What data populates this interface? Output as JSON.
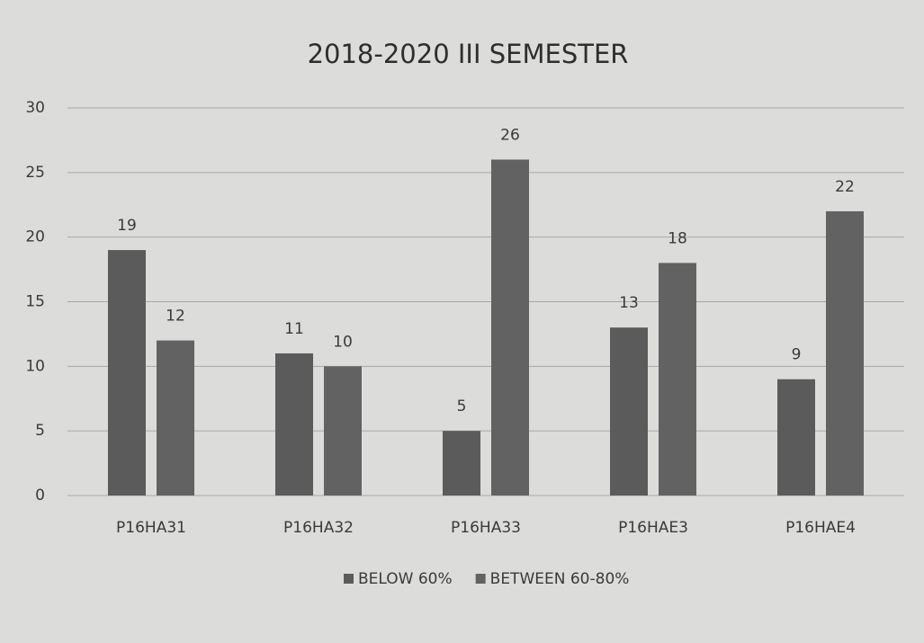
{
  "chart_data": {
    "type": "bar",
    "title": "2018-2020 III SEMESTER",
    "categories": [
      "P16HA31",
      "P16HA32",
      "P16HA33",
      "P16HAE3",
      "P16HAE4"
    ],
    "series": [
      {
        "name": "BELOW 60%",
        "color": "#5b5b5b",
        "values": [
          19,
          11,
          5,
          13,
          9
        ]
      },
      {
        "name": "BETWEEN 60-80%",
        "color": "#626262",
        "values": [
          12,
          10,
          26,
          18,
          22
        ]
      }
    ],
    "ylim": [
      0,
      30
    ],
    "yticks": [
      0,
      5,
      10,
      15,
      20,
      25,
      30
    ],
    "grid": true,
    "legend": "bottom"
  }
}
